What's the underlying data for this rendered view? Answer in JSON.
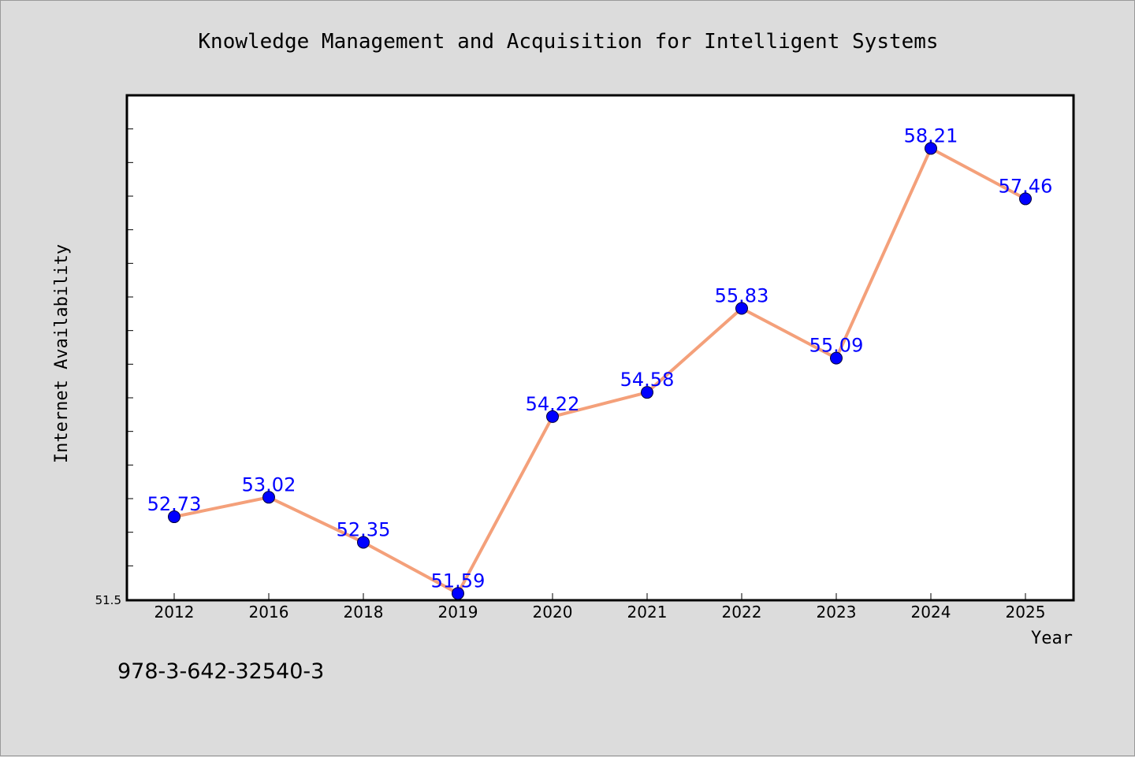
{
  "footer_code": "978-3-642-32540-3",
  "chart_data": {
    "type": "line",
    "title": "Knowledge Management and Acquisition for Intelligent Systems",
    "xlabel": "Year",
    "ylabel": "Internet Availability",
    "categories": [
      "2012",
      "2016",
      "2018",
      "2019",
      "2020",
      "2021",
      "2022",
      "2023",
      "2024",
      "2025"
    ],
    "values": [
      52.73,
      53.02,
      52.35,
      51.59,
      54.22,
      54.58,
      55.83,
      55.09,
      58.21,
      57.46
    ],
    "data_labels": [
      "52.73",
      "53.02",
      "52.35",
      "51.59",
      "54.22",
      "54.58",
      "55.83",
      "55.09",
      "58.21",
      "57.46"
    ],
    "ylim": [
      51.5,
      59.0
    ],
    "y_tick_label": "51.5",
    "grid": false,
    "colors": {
      "line": "#f4a07a",
      "marker": "#0000ff",
      "label": "#0000ff"
    }
  }
}
